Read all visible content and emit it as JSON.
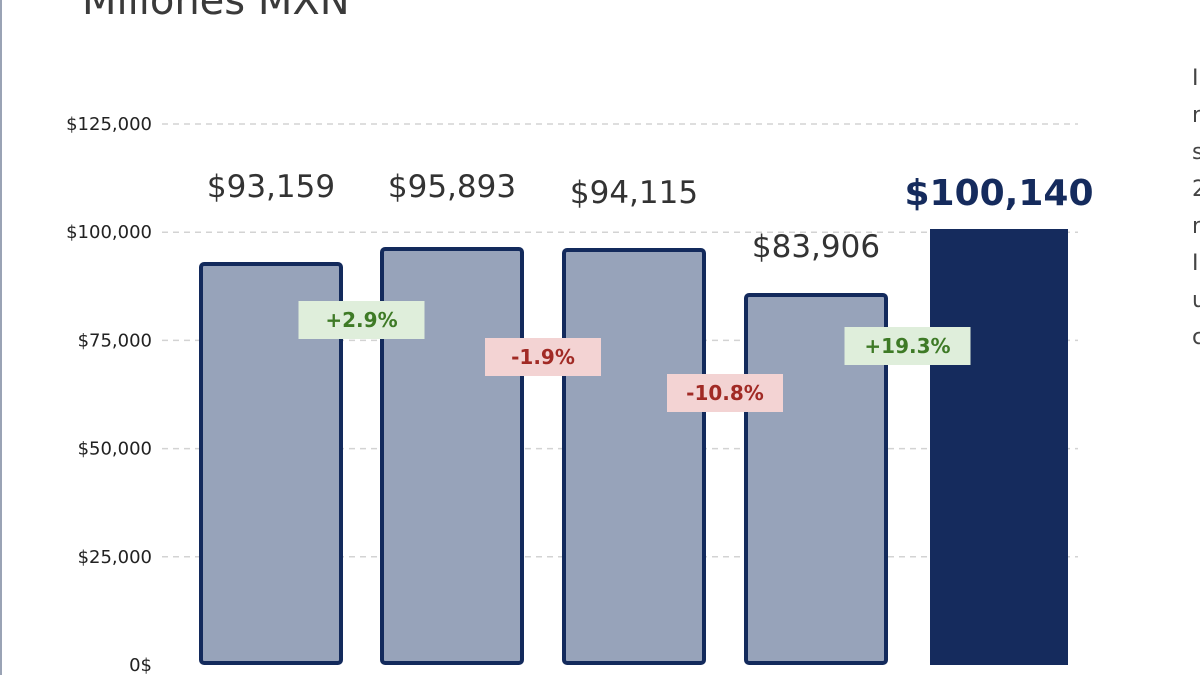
{
  "page": {
    "title": "Millones MXN"
  },
  "side_text": [
    "I",
    "n",
    "s",
    "2",
    "n",
    "I",
    "u",
    "c"
  ],
  "chart_data": {
    "type": "bar",
    "categories": [
      "",
      "",
      "",
      "",
      ""
    ],
    "values": [
      93159,
      95893,
      94115,
      83906,
      100140
    ],
    "value_labels": [
      "$93,159",
      "$95,893",
      "$94,115",
      "$83,906",
      "$100,140"
    ],
    "highlight_index": 4,
    "changes": [
      {
        "label": "+2.9%",
        "direction": "up"
      },
      {
        "label": "-1.9%",
        "direction": "down"
      },
      {
        "label": "-10.8%",
        "direction": "down"
      },
      {
        "label": "+19.3%",
        "direction": "up"
      }
    ],
    "y_ticks": [
      0,
      25000,
      50000,
      75000,
      100000,
      125000
    ],
    "y_tick_labels": [
      "0$",
      "$25,000",
      "$50,000",
      "$75,000",
      "$100,000",
      "$125,000"
    ],
    "ylim": [
      0,
      125000
    ],
    "grid": true,
    "colors": {
      "bar_fill": "#97a3ba",
      "bar_stroke": "#132a5c",
      "highlight_fill": "#152b5d",
      "up_bg": "#dfeedb",
      "up_text": "#3e7a26",
      "down_bg": "#f3d3d3",
      "down_text": "#a12a25",
      "grid": "#d3d3d3",
      "value_text": "#333333",
      "highlight_text": "#152b5d"
    }
  }
}
